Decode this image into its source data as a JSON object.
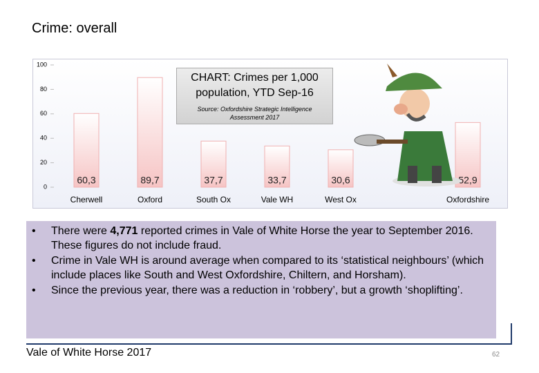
{
  "slide_title": "Crime: overall",
  "chart_data": {
    "type": "bar",
    "title": "CHART: Crimes per 1,000 population, YTD Sep-16",
    "subtitle": "Source: Oxfordshire Strategic Intelligence Assessment 2017",
    "categories": [
      "Cherwell",
      "Oxford",
      "South Ox",
      "Vale WH",
      "West Ox",
      null,
      "Oxfordshire"
    ],
    "values": [
      60.3,
      89.7,
      37.7,
      33.7,
      30.6,
      null,
      52.9
    ],
    "value_labels": [
      "60,3",
      "89,7",
      "37,7",
      "33,7",
      "30,6",
      null,
      "52,9"
    ],
    "color": "#f6c4c4",
    "ylim": [
      0,
      100
    ],
    "yticks": [
      0,
      20,
      40,
      60,
      80,
      100
    ],
    "grid": false
  },
  "bullets": [
    [
      "There were ",
      "4,771",
      " reported crimes in Vale of White Horse the year to September 2016.  These figures do not include fraud."
    ],
    [
      "Crime in Vale WH is around average when compared to its ‘statistical neighbours’ (which include places like South and West Oxfordshire, Chiltern, and Horsham)."
    ],
    [
      "Since the previous year, there was a reduction in ‘robbery’, but a growth ‘shoplifting’."
    ]
  ],
  "footer": "Vale of White Horse 2017",
  "page_number": "62"
}
